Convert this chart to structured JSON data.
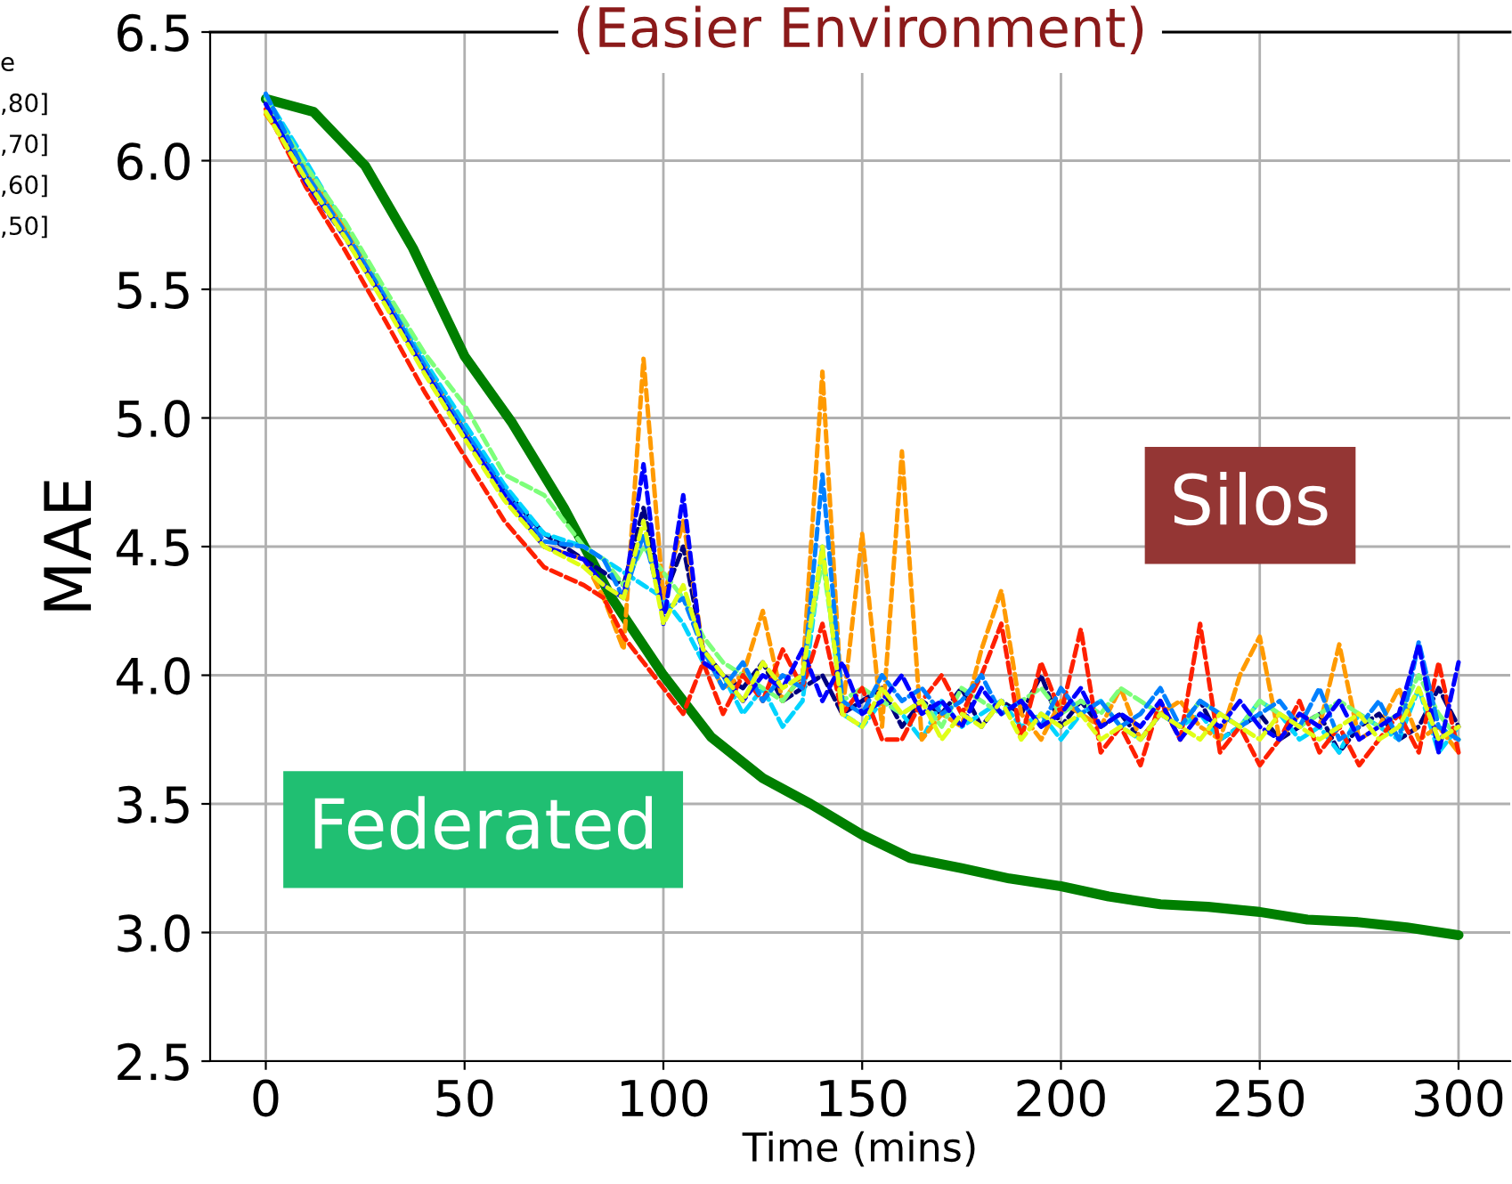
{
  "chart_data": {
    "type": "line",
    "title": "(Easier Environment)",
    "xlabel": "Time (mins)",
    "ylabel": "MAE",
    "xlim": [
      -14,
      313
    ],
    "xticks": [
      0,
      50,
      100,
      150,
      200,
      250,
      300
    ],
    "ylim": [
      2.5,
      6.5
    ],
    "yticks": [
      2.5,
      {
        "value": 3,
        "label": "3.0"
      },
      3.5,
      {
        "value": 4,
        "label": "4.0"
      },
      4.5,
      {
        "value": 5,
        "label": "5.0"
      },
      5.5,
      {
        "value": 6,
        "label": "6.0"
      },
      6.5
    ],
    "grid": true,
    "x": [
      0,
      10,
      20,
      30,
      40,
      50,
      60,
      70,
      80,
      85,
      90,
      95,
      100,
      105,
      110,
      115,
      120,
      125,
      130,
      135,
      140,
      145,
      150,
      155,
      160,
      165,
      170,
      175,
      180,
      185,
      190,
      195,
      200,
      205,
      210,
      215,
      220,
      225,
      230,
      235,
      240,
      245,
      250,
      255,
      260,
      265,
      270,
      275,
      280,
      285,
      290,
      295,
      300
    ],
    "series": [
      {
        "color": "#00007f",
        "line_style": "dashed",
        "values": [
          6.23,
          5.96,
          5.72,
          5.46,
          5.2,
          4.95,
          4.72,
          4.55,
          4.45,
          4.4,
          4.35,
          4.65,
          4.3,
          4.5,
          4.1,
          4.0,
          3.95,
          4.05,
          3.9,
          3.95,
          4.0,
          3.85,
          3.9,
          3.95,
          3.8,
          3.9,
          3.85,
          3.95,
          3.8,
          3.9,
          3.85,
          4.0,
          3.8,
          3.9,
          3.8,
          3.85,
          3.75,
          3.85,
          3.8,
          3.9,
          3.75,
          3.8,
          3.85,
          3.75,
          3.8,
          3.85,
          3.7,
          3.8,
          3.85,
          3.75,
          3.8,
          3.95,
          3.8
        ]
      },
      {
        "color": "#0000ff",
        "line_style": "dashed",
        "values": [
          6.22,
          5.92,
          5.7,
          5.45,
          5.18,
          4.93,
          4.7,
          4.5,
          4.45,
          4.35,
          4.3,
          4.82,
          4.2,
          4.7,
          4.05,
          4.0,
          3.9,
          4.0,
          3.95,
          4.1,
          3.9,
          4.05,
          3.85,
          3.9,
          4.0,
          3.85,
          3.9,
          3.8,
          3.95,
          3.85,
          3.9,
          3.8,
          3.85,
          3.95,
          3.8,
          3.85,
          3.8,
          3.9,
          3.75,
          3.85,
          3.8,
          3.9,
          3.8,
          3.75,
          3.85,
          3.8,
          3.9,
          3.75,
          3.8,
          3.85,
          4.12,
          3.7,
          4.05
        ]
      },
      {
        "color": "#0080ff",
        "line_style": "dashed",
        "values": [
          6.26,
          5.95,
          5.72,
          5.47,
          5.2,
          4.95,
          4.72,
          4.52,
          4.5,
          4.45,
          4.3,
          4.55,
          4.25,
          4.3,
          4.1,
          3.95,
          4.05,
          3.9,
          4.0,
          3.95,
          4.78,
          3.9,
          3.85,
          4.0,
          3.9,
          3.95,
          3.85,
          3.9,
          4.0,
          3.85,
          3.9,
          3.8,
          3.95,
          3.85,
          3.9,
          3.8,
          3.85,
          3.95,
          3.8,
          3.9,
          3.85,
          3.8,
          3.85,
          3.9,
          3.8,
          3.95,
          3.75,
          3.8,
          3.9,
          3.75,
          4.13,
          3.8,
          3.75
        ]
      },
      {
        "color": "#00d4ff",
        "line_style": "dashed",
        "values": [
          6.25,
          6.0,
          5.74,
          5.48,
          5.22,
          4.98,
          4.74,
          4.55,
          4.5,
          4.45,
          4.4,
          4.35,
          4.3,
          4.2,
          4.05,
          4.0,
          3.85,
          3.95,
          3.8,
          3.9,
          4.5,
          3.85,
          3.8,
          3.9,
          3.85,
          3.75,
          3.9,
          3.8,
          3.85,
          3.9,
          3.8,
          3.85,
          3.75,
          3.85,
          3.9,
          3.8,
          3.75,
          3.85,
          3.8,
          3.85,
          3.75,
          3.8,
          3.9,
          3.85,
          3.75,
          3.8,
          3.7,
          3.85,
          3.8,
          3.75,
          3.95,
          3.7,
          3.8
        ]
      },
      {
        "color": "#7dff7a",
        "line_style": "dashed",
        "values": [
          6.24,
          5.98,
          5.76,
          5.5,
          5.25,
          5.05,
          4.78,
          4.7,
          4.5,
          4.45,
          4.35,
          4.5,
          4.4,
          4.3,
          4.15,
          4.05,
          4.0,
          3.95,
          3.9,
          4.0,
          4.45,
          3.9,
          3.95,
          3.9,
          3.85,
          3.9,
          3.8,
          3.95,
          3.9,
          3.85,
          3.9,
          3.95,
          3.85,
          3.9,
          3.85,
          3.95,
          3.9,
          3.85,
          3.8,
          3.9,
          3.85,
          3.8,
          3.9,
          3.85,
          3.8,
          3.85,
          3.9,
          3.85,
          3.8,
          3.85,
          4.0,
          3.85,
          3.75
        ]
      },
      {
        "color": "#e0ff17",
        "line_style": "dashed",
        "values": [
          6.19,
          5.93,
          5.7,
          5.44,
          5.17,
          4.92,
          4.68,
          4.5,
          4.42,
          4.35,
          4.3,
          4.6,
          4.2,
          4.35,
          4.1,
          4.0,
          3.9,
          4.05,
          3.95,
          4.0,
          4.5,
          3.85,
          3.8,
          3.95,
          3.85,
          3.9,
          3.75,
          3.85,
          3.8,
          3.9,
          3.75,
          3.85,
          3.8,
          3.85,
          3.75,
          3.8,
          3.75,
          3.85,
          3.8,
          3.75,
          3.85,
          3.8,
          3.75,
          3.85,
          3.8,
          3.75,
          3.8,
          3.85,
          3.75,
          3.8,
          3.95,
          3.75,
          3.8
        ]
      },
      {
        "color": "#ff9a00",
        "line_style": "dashed",
        "values": [
          6.18,
          5.97,
          5.73,
          5.47,
          5.2,
          4.95,
          4.7,
          4.5,
          4.45,
          4.3,
          4.1,
          5.23,
          4.3,
          4.6,
          4.1,
          3.95,
          4.0,
          4.25,
          3.9,
          4.0,
          5.18,
          3.85,
          4.55,
          3.8,
          4.87,
          3.75,
          3.85,
          3.8,
          4.1,
          4.33,
          3.85,
          3.75,
          3.9,
          3.85,
          3.8,
          3.95,
          3.75,
          3.85,
          3.9,
          3.8,
          3.75,
          4.0,
          4.15,
          3.75,
          3.85,
          3.8,
          4.12,
          3.75,
          3.8,
          3.95,
          3.75,
          3.8,
          3.7
        ]
      },
      {
        "color": "#ff2000",
        "line_style": "dashed",
        "values": [
          6.2,
          5.9,
          5.65,
          5.38,
          5.1,
          4.85,
          4.6,
          4.42,
          4.35,
          4.3,
          4.15,
          4.05,
          3.95,
          3.85,
          4.05,
          3.85,
          4.0,
          3.9,
          4.1,
          3.95,
          4.2,
          3.85,
          3.95,
          3.75,
          3.75,
          3.9,
          4.0,
          3.85,
          4.0,
          4.2,
          3.75,
          4.05,
          3.85,
          4.18,
          3.7,
          3.8,
          3.65,
          3.9,
          3.75,
          4.2,
          3.7,
          3.8,
          3.65,
          3.75,
          3.9,
          3.7,
          3.8,
          3.65,
          3.75,
          3.85,
          3.7,
          4.05,
          3.7
        ]
      },
      {
        "color": "#007f00",
        "line_style": "solid",
        "x": [
          0,
          12,
          25,
          37,
          50,
          62,
          75,
          87,
          100,
          112,
          125,
          137,
          150,
          162,
          175,
          187,
          200,
          212,
          225,
          237,
          250,
          262,
          275,
          287,
          300
        ],
        "values": [
          6.24,
          6.19,
          5.98,
          5.66,
          5.24,
          4.98,
          4.65,
          4.3,
          4.0,
          3.76,
          3.6,
          3.5,
          3.38,
          3.29,
          3.25,
          3.21,
          3.18,
          3.14,
          3.11,
          3.1,
          3.08,
          3.05,
          3.04,
          3.02,
          2.99
        ]
      }
    ],
    "annotations": [
      "e",
      ",80]",
      ",70]",
      ",60]",
      ",50]",
      "Silos",
      "Federated"
    ]
  }
}
